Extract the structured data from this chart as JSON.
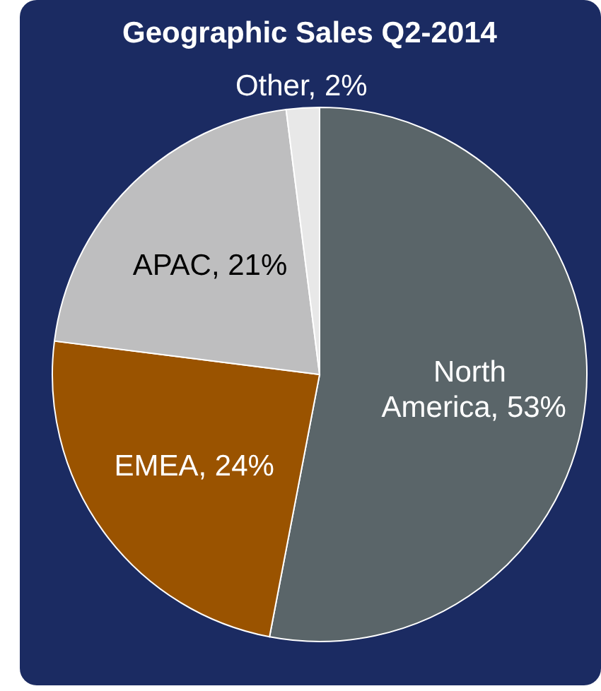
{
  "chart_data": {
    "type": "pie",
    "title": "Geographic Sales Q2-2014",
    "categories": [
      "North America",
      "EMEA",
      "APAC",
      "Other"
    ],
    "values": [
      53,
      24,
      21,
      2
    ],
    "colors": [
      "#5a6569",
      "#9a5300",
      "#bebebf",
      "#e8e8e8"
    ],
    "value_labels": [
      "53%",
      "24%",
      "21%",
      "2%"
    ]
  }
}
